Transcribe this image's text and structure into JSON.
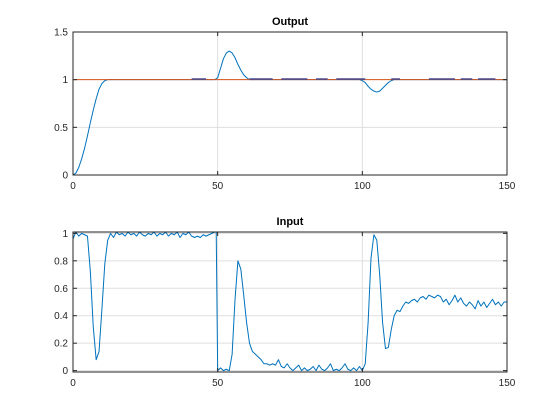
{
  "chart_data": [
    {
      "type": "line",
      "title": "Output",
      "xlabel": "",
      "ylabel": "",
      "xlim": [
        0,
        150
      ],
      "ylim": [
        0,
        1.5
      ],
      "xticks": [
        0,
        50,
        100,
        150
      ],
      "yticks": [
        0,
        0.5,
        1,
        1.5
      ],
      "ytick_labels": [
        "0",
        "0.5",
        "1",
        "1.5"
      ],
      "grid": true,
      "colors": {
        "axes": "#262626",
        "grid": "#dfdfdf"
      },
      "series": [
        {
          "color": "#0072BD",
          "x": [
            0,
            1,
            2,
            3,
            4,
            5,
            6,
            7,
            8,
            9,
            10,
            11,
            12,
            14,
            20,
            30,
            40,
            45,
            48,
            49,
            50,
            51,
            52,
            53,
            54,
            55,
            56,
            57,
            58,
            59,
            60,
            61,
            62,
            63,
            65,
            70,
            80,
            90,
            99,
            100,
            101,
            102,
            103,
            104,
            105,
            106,
            107,
            108,
            109,
            110,
            111,
            112,
            115,
            120,
            130,
            140,
            150
          ],
          "y": [
            0,
            0.02,
            0.08,
            0.17,
            0.28,
            0.41,
            0.55,
            0.68,
            0.8,
            0.9,
            0.96,
            0.99,
            1.0,
            1.0,
            1.0,
            1.0,
            1.0,
            1.0,
            1.0,
            1.0,
            1.02,
            1.12,
            1.22,
            1.28,
            1.3,
            1.28,
            1.23,
            1.16,
            1.1,
            1.05,
            1.02,
            1.0,
            1.0,
            1.0,
            1.0,
            1.0,
            1.0,
            1.0,
            1.0,
            0.99,
            0.97,
            0.93,
            0.9,
            0.88,
            0.87,
            0.88,
            0.91,
            0.94,
            0.97,
            0.99,
            1.0,
            1.0,
            1.0,
            1.0,
            1.0,
            1.0,
            1.0
          ]
        },
        {
          "color": "#D95319",
          "x": [
            0,
            150
          ],
          "y": [
            1,
            1
          ]
        },
        {
          "color": "#4a4a8a",
          "style": "segments",
          "segments": [
            [
              41,
              46
            ],
            [
              61,
              69
            ],
            [
              72,
              81
            ],
            [
              84,
              88
            ],
            [
              91,
              101
            ],
            [
              110,
              113
            ],
            [
              123,
              132
            ],
            [
              134,
              138
            ],
            [
              140,
              146
            ]
          ],
          "y": 1.0
        }
      ]
    },
    {
      "type": "line",
      "title": "Input",
      "xlabel": "",
      "ylabel": "",
      "xlim": [
        0,
        150
      ],
      "ylim": [
        -0.01,
        1.01
      ],
      "xticks": [
        0,
        50,
        100,
        150
      ],
      "yticks": [
        0,
        0.2,
        0.4,
        0.6,
        0.8,
        1
      ],
      "ytick_labels": [
        "0",
        "0.2",
        "0.4",
        "0.6",
        "0.8",
        "1"
      ],
      "grid": true,
      "colors": {
        "axes": "#262626",
        "grid": "#dfdfdf"
      },
      "series": [
        {
          "color": "#0072BD",
          "x": [
            0,
            1,
            2,
            3,
            4,
            5,
            6,
            7,
            8,
            9,
            10,
            11,
            12,
            13,
            14,
            15,
            16,
            17,
            18,
            19,
            20,
            21,
            22,
            23,
            24,
            25,
            26,
            27,
            28,
            29,
            30,
            31,
            32,
            33,
            34,
            35,
            36,
            37,
            38,
            39,
            40,
            41,
            42,
            43,
            44,
            45,
            46,
            47,
            48,
            49,
            49.5,
            50,
            51,
            52,
            53,
            54,
            55,
            56,
            57,
            58,
            59,
            60,
            61,
            62,
            63,
            64,
            65,
            66,
            67,
            68,
            69,
            70,
            71,
            72,
            73,
            74,
            75,
            76,
            77,
            78,
            79,
            80,
            81,
            82,
            83,
            84,
            85,
            86,
            87,
            88,
            89,
            90,
            91,
            92,
            93,
            94,
            95,
            96,
            97,
            98,
            99,
            100,
            101,
            102,
            103,
            104,
            105,
            106,
            107,
            108,
            109,
            110,
            111,
            112,
            113,
            114,
            115,
            116,
            117,
            118,
            119,
            120,
            121,
            122,
            123,
            124,
            125,
            126,
            127,
            128,
            129,
            130,
            131,
            132,
            133,
            134,
            135,
            136,
            137,
            138,
            139,
            140,
            141,
            142,
            143,
            144,
            145,
            146,
            147,
            148,
            149,
            150
          ],
          "y": [
            0.96,
            1.01,
            0.98,
            1.0,
            0.99,
            0.98,
            0.72,
            0.32,
            0.08,
            0.14,
            0.45,
            0.78,
            0.95,
            1.0,
            0.97,
            1.01,
            0.99,
            1.0,
            0.98,
            1.01,
            0.99,
            1.0,
            0.98,
            1.01,
            0.99,
            0.98,
            1.0,
            0.99,
            1.01,
            0.98,
            1.0,
            0.99,
            1.01,
            0.98,
            1.0,
            0.99,
            1.01,
            0.97,
            1.0,
            0.99,
            1.01,
            0.98,
            0.97,
            0.98,
            0.97,
            0.99,
            0.98,
            0.99,
            1.0,
            1.01,
            1.01,
            0.0,
            0.02,
            0.0,
            0.01,
            0.0,
            0.12,
            0.52,
            0.8,
            0.74,
            0.55,
            0.35,
            0.2,
            0.14,
            0.12,
            0.1,
            0.08,
            0.05,
            0.05,
            0.04,
            0.05,
            0.04,
            0.08,
            0.03,
            0.02,
            0.05,
            0.02,
            0.0,
            0.02,
            0.04,
            0.0,
            0.02,
            0.0,
            0.01,
            0.03,
            0.0,
            0.04,
            0.01,
            0.0,
            0.02,
            0.05,
            0.0,
            0.01,
            0.0,
            0.02,
            0.05,
            0.01,
            0.0,
            0.02,
            0.0,
            0.03,
            0.0,
            0.05,
            0.35,
            0.82,
            0.99,
            0.95,
            0.7,
            0.35,
            0.16,
            0.17,
            0.3,
            0.4,
            0.44,
            0.43,
            0.47,
            0.5,
            0.49,
            0.51,
            0.52,
            0.5,
            0.53,
            0.54,
            0.52,
            0.55,
            0.54,
            0.53,
            0.55,
            0.54,
            0.5,
            0.52,
            0.48,
            0.51,
            0.55,
            0.5,
            0.53,
            0.49,
            0.47,
            0.5,
            0.48,
            0.45,
            0.51,
            0.47,
            0.5,
            0.46,
            0.49,
            0.52,
            0.48,
            0.5,
            0.47,
            0.5,
            0.5
          ]
        }
      ]
    }
  ]
}
